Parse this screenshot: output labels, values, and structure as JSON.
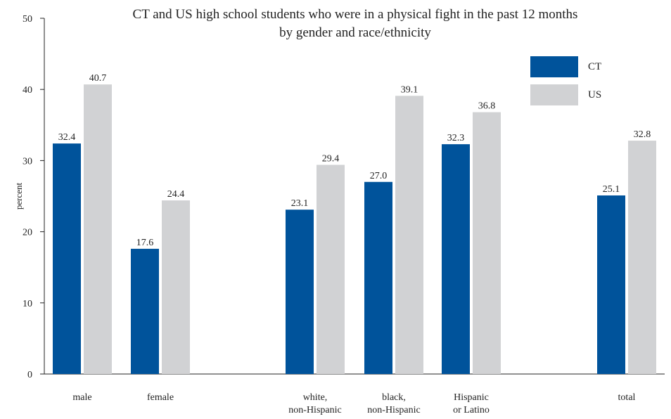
{
  "chart_data": {
    "type": "bar",
    "title": "CT and US high school students who were in a physical fight in the past 12 months",
    "subtitle": "by gender and race/ethnicity",
    "ylabel": "percent",
    "xlabel": "",
    "ylim": [
      0,
      50
    ],
    "yticks": [
      0,
      10,
      20,
      30,
      40,
      50
    ],
    "categories": [
      [
        "male"
      ],
      [
        "female"
      ],
      [
        "white,",
        "non-Hispanic"
      ],
      [
        "black,",
        "non-Hispanic"
      ],
      [
        "Hispanic",
        "or Latino"
      ],
      [
        "total"
      ]
    ],
    "series": [
      {
        "name": "CT",
        "color": "#00539b",
        "values": [
          32.4,
          17.6,
          23.1,
          27.0,
          32.3,
          25.1
        ],
        "labels": [
          "32.4",
          "17.6",
          "23.1",
          "27.0",
          "32.3",
          "25.1"
        ]
      },
      {
        "name": "US",
        "color": "#d1d2d4",
        "values": [
          40.7,
          24.4,
          29.4,
          39.1,
          36.8,
          32.8
        ],
        "labels": [
          "40.7",
          "24.4",
          "29.4",
          "39.1",
          "36.8",
          "32.8"
        ]
      }
    ],
    "legend_position": "top-right",
    "grid": false
  }
}
